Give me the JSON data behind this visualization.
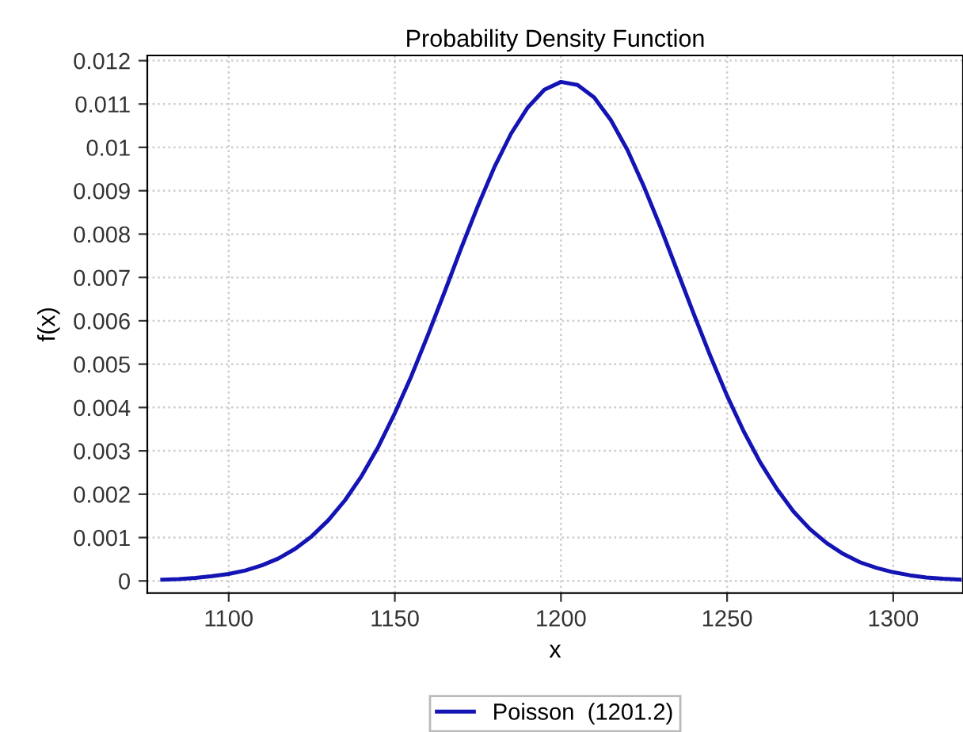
{
  "chart_data": {
    "type": "line",
    "title": "Probability Density Function",
    "xlabel": "x",
    "ylabel": "f(x)",
    "x": [
      1080,
      1085,
      1090,
      1095,
      1100,
      1105,
      1110,
      1115,
      1120,
      1125,
      1130,
      1135,
      1140,
      1145,
      1150,
      1155,
      1160,
      1165,
      1170,
      1175,
      1180,
      1185,
      1190,
      1195,
      1200,
      1205,
      1210,
      1215,
      1220,
      1225,
      1230,
      1235,
      1240,
      1245,
      1250,
      1255,
      1260,
      1265,
      1270,
      1275,
      1280,
      1285,
      1290,
      1295,
      1300,
      1305,
      1310,
      1315,
      1320
    ],
    "series": [
      {
        "name": "Poisson  (1201.2)",
        "color": "#1414b4",
        "values": [
          3e-05,
          4e-05,
          7e-05,
          0.00011,
          0.00016,
          0.00024,
          0.00036,
          0.00052,
          0.00074,
          0.00103,
          0.0014,
          0.00186,
          0.00242,
          0.00309,
          0.00387,
          0.00473,
          0.00568,
          0.00667,
          0.00768,
          0.00865,
          0.00955,
          0.01032,
          0.01092,
          0.01133,
          0.01151,
          0.01144,
          0.01115,
          0.01063,
          0.00994,
          0.00909,
          0.00815,
          0.00715,
          0.00615,
          0.00518,
          0.00427,
          0.00345,
          0.00273,
          0.00212,
          0.0016,
          0.00119,
          0.00087,
          0.00062,
          0.00043,
          0.0003,
          0.0002,
          0.00013,
          8e-05,
          5e-05,
          3e-05
        ]
      }
    ],
    "xlim": [
      1075.5,
      1321
    ],
    "ylim": [
      -0.00028,
      0.01212
    ],
    "xticks": [
      1100,
      1150,
      1200,
      1250,
      1300
    ],
    "yticks": [
      0,
      0.001,
      0.002,
      0.003,
      0.004,
      0.005,
      0.006,
      0.007,
      0.008,
      0.009,
      0.01,
      0.011,
      0.012
    ],
    "grid": true,
    "legend": "bottom",
    "marker": "none",
    "line_style": "solid"
  }
}
